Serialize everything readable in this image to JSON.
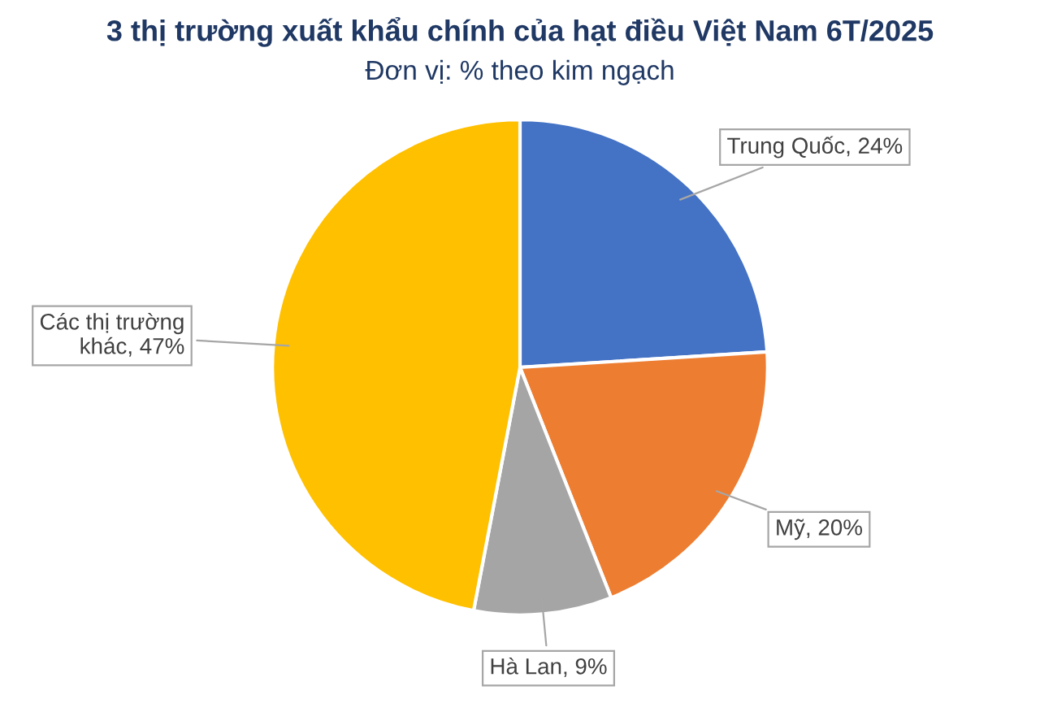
{
  "chart_data": {
    "type": "pie",
    "title": "3 thị trường xuất khẩu chính của hạt điều Việt Nam 6T/2025",
    "subtitle": "Đơn vị: % theo kim ngạch",
    "categories": [
      "Trung Quốc",
      "Mỹ",
      "Hà Lan",
      "Các thị trường khác"
    ],
    "values": [
      24,
      20,
      9,
      47
    ],
    "value_labels": [
      "24%",
      "20%",
      "9%",
      "47%"
    ],
    "colors": [
      "#4472c4",
      "#ed7d31",
      "#a5a5a5",
      "#ffc000"
    ],
    "legend": false
  }
}
